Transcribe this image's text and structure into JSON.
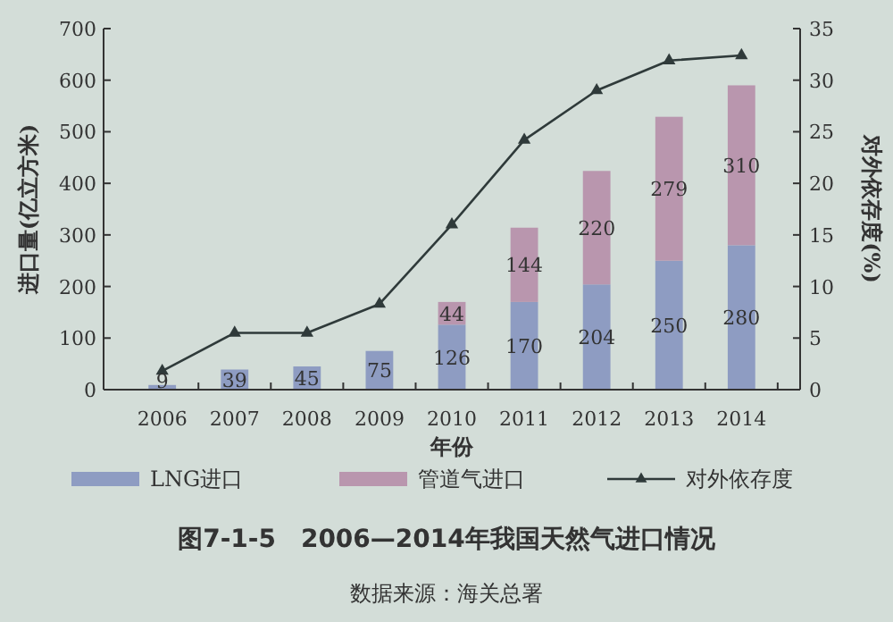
{
  "chart_data": {
    "type": "bar",
    "title": "图7-1-5　2006—2014年我国天然气进口情况",
    "xlabel": "年份",
    "ylabel": "进口量(亿立方米)",
    "y2label": "对外依存度(%)",
    "annotations": [
      "数据来源：海关总署"
    ],
    "categories": [
      "2006",
      "2007",
      "2008",
      "2009",
      "2010",
      "2011",
      "2012",
      "2013",
      "2014"
    ],
    "stacked": true,
    "legend": "bottom",
    "grid": false,
    "ylim": [
      0,
      700
    ],
    "yticks": [
      0,
      100,
      200,
      300,
      400,
      500,
      600,
      700
    ],
    "y2lim": [
      0,
      35
    ],
    "y2ticks": [
      0,
      5,
      10,
      15,
      20,
      25,
      30,
      35
    ],
    "series": [
      {
        "name": "LNG进口",
        "color": "#8e9cc2",
        "values": [
          9,
          39,
          45,
          75,
          126,
          170,
          204,
          250,
          280
        ],
        "value_labels": [
          "9",
          "39",
          "45",
          "75",
          "126",
          "170",
          "204",
          "250",
          "280"
        ]
      },
      {
        "name": "管道气进口",
        "color": "#b996ae",
        "values": [
          null,
          null,
          null,
          null,
          44,
          144,
          220,
          279,
          310
        ],
        "value_labels": [
          null,
          null,
          null,
          null,
          "44",
          "144",
          "220",
          "279",
          "310"
        ]
      },
      {
        "name": "对外依存度",
        "type": "line",
        "axis": "y2",
        "color": "#2f3a3a",
        "marker": "triangle",
        "line_style": "solid",
        "values": [
          1.8,
          5.5,
          5.5,
          8.3,
          16.0,
          24.2,
          29.0,
          31.9,
          32.4
        ]
      }
    ]
  }
}
